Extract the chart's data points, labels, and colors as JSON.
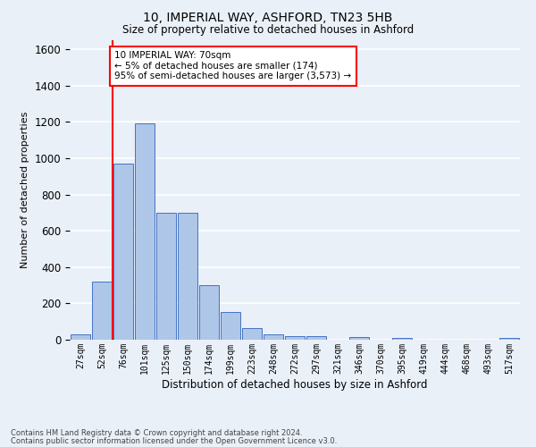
{
  "title1": "10, IMPERIAL WAY, ASHFORD, TN23 5HB",
  "title2": "Size of property relative to detached houses in Ashford",
  "xlabel": "Distribution of detached houses by size in Ashford",
  "ylabel": "Number of detached properties",
  "bar_labels": [
    "27sqm",
    "52sqm",
    "76sqm",
    "101sqm",
    "125sqm",
    "150sqm",
    "174sqm",
    "199sqm",
    "223sqm",
    "248sqm",
    "272sqm",
    "297sqm",
    "321sqm",
    "346sqm",
    "370sqm",
    "395sqm",
    "419sqm",
    "444sqm",
    "468sqm",
    "493sqm",
    "517sqm"
  ],
  "bar_values": [
    30,
    320,
    970,
    1190,
    700,
    700,
    300,
    155,
    65,
    30,
    20,
    20,
    0,
    15,
    0,
    12,
    0,
    0,
    0,
    0,
    12
  ],
  "bar_color": "#aec6e8",
  "bar_edge_color": "#4472c4",
  "vline_color": "red",
  "ylim": [
    0,
    1650
  ],
  "yticks": [
    0,
    200,
    400,
    600,
    800,
    1000,
    1200,
    1400,
    1600
  ],
  "annotation_text": "10 IMPERIAL WAY: 70sqm\n← 5% of detached houses are smaller (174)\n95% of semi-detached houses are larger (3,573) →",
  "annotation_box_color": "white",
  "annotation_box_edge": "red",
  "footer1": "Contains HM Land Registry data © Crown copyright and database right 2024.",
  "footer2": "Contains public sector information licensed under the Open Government Licence v3.0.",
  "bg_color": "#eaf0f8",
  "plot_bg_color": "#eaf0f8",
  "grid_color": "white"
}
